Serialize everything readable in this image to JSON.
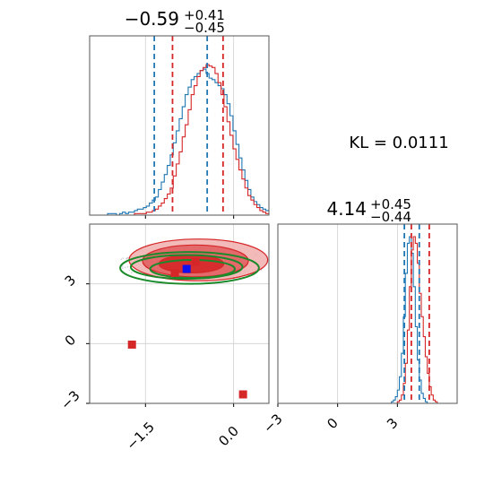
{
  "colors": {
    "blue": "#1f77b4",
    "red": "#d62728",
    "green": "#1a8a2a",
    "grid": "#d0d0d0",
    "fill_red_dark": "#d62728",
    "fill_red_light": "#f2b3b3"
  },
  "chart_data": [
    {
      "type": "histogram",
      "panel": "top-left",
      "title_main": "−0.59",
      "title_sup": "+0.41",
      "title_sub": "−0.45",
      "xlim": [
        -2.45,
        0.6
      ],
      "x_ticks": [
        -1.5,
        0.0
      ],
      "vlines_blue": [
        -1.35,
        -0.45
      ],
      "vlines_red": [
        -1.04,
        -0.18
      ],
      "series": [
        {
          "name": "",
          "color": "blue",
          "x_start": -2.45,
          "bin_width": 0.0508,
          "values": [
            0,
            0,
            0,
            0,
            0,
            0,
            1,
            1,
            1,
            0,
            1,
            2,
            1,
            2,
            2,
            3,
            4,
            4,
            5,
            6,
            8,
            10,
            12,
            17,
            22,
            27,
            33,
            40,
            48,
            56,
            64,
            72,
            80,
            85,
            90,
            92,
            94,
            96,
            97,
            94,
            91,
            90,
            88,
            86,
            84,
            80,
            74,
            66,
            56,
            47,
            38,
            30,
            23,
            17,
            12,
            9,
            7,
            5,
            4,
            3
          ]
        },
        {
          "name": "",
          "color": "red",
          "x_start": -2.45,
          "bin_width": 0.0508,
          "values": [
            0,
            0,
            0,
            0,
            0,
            0,
            0,
            0,
            0,
            0,
            0,
            0,
            0,
            0,
            0,
            1,
            1,
            1,
            1,
            2,
            2,
            3,
            4,
            6,
            8,
            11,
            14,
            18,
            26,
            34,
            42,
            52,
            60,
            70,
            80,
            86,
            92,
            96,
            98,
            100,
            99,
            98,
            94,
            88,
            80,
            72,
            62,
            53,
            44,
            37,
            30,
            24,
            18,
            13,
            10,
            7,
            5,
            3,
            2,
            1
          ]
        }
      ]
    },
    {
      "type": "scatter",
      "panel": "bottom-left",
      "xlim": [
        -2.45,
        0.6
      ],
      "ylim": [
        -3.0,
        6.0
      ],
      "x_ticks": [
        -1.5,
        0.0
      ],
      "y_ticks": [
        3,
        0,
        -3
      ],
      "x_tick_labels": [
        "−1.5",
        "0.0"
      ],
      "y_tick_labels": [
        "3",
        "0",
        "−3"
      ],
      "red_markers": [
        [
          -1.0,
          3.55
        ],
        [
          -0.65,
          4.1
        ],
        [
          -1.73,
          -0.05
        ],
        [
          0.16,
          -2.55
        ]
      ],
      "blue_markers": [
        [
          -0.8,
          3.75
        ]
      ],
      "red_contours": [
        {
          "cx": -0.6,
          "cy": 4.2,
          "rx": 1.18,
          "ry": 1.05,
          "level": "outer"
        },
        {
          "cx": -0.65,
          "cy": 4.15,
          "rx": 0.9,
          "ry": 0.8,
          "level": "mid"
        },
        {
          "cx": -0.72,
          "cy": 4.0,
          "rx": 0.55,
          "ry": 0.45,
          "level": "inner"
        }
      ],
      "green_contours": [
        {
          "cx": -0.75,
          "cy": 3.8,
          "rx": 1.18,
          "ry": 0.8
        },
        {
          "cx": -0.8,
          "cy": 3.85,
          "rx": 0.95,
          "ry": 0.6
        },
        {
          "cx": -0.7,
          "cy": 3.75,
          "rx": 0.72,
          "ry": 0.45
        }
      ]
    },
    {
      "type": "histogram",
      "panel": "bottom-right",
      "title_main": "4.14",
      "title_sup": "+0.45",
      "title_sub": "−0.44",
      "xlim": [
        -3.0,
        6.0
      ],
      "x_ticks": [
        -3,
        0,
        3
      ],
      "x_tick_labels": [
        "−3",
        "0",
        "3"
      ],
      "vlines_blue": [
        3.35,
        4.1
      ],
      "vlines_red": [
        3.7,
        4.6
      ],
      "series": [
        {
          "name": "",
          "color": "blue",
          "x_start": 2.6,
          "bin_width": 0.1,
          "values": [
            0,
            1,
            2,
            4,
            8,
            16,
            30,
            52,
            78,
            96,
            100,
            90,
            70,
            46,
            26,
            14,
            6,
            3,
            1,
            0,
            0,
            0,
            0,
            0,
            0,
            0,
            0,
            0,
            0,
            0
          ]
        },
        {
          "name": "",
          "color": "red",
          "x_start": 2.6,
          "bin_width": 0.1,
          "values": [
            0,
            0,
            0,
            0,
            1,
            2,
            5,
            12,
            24,
            44,
            70,
            92,
            100,
            96,
            84,
            66,
            52,
            40,
            28,
            18,
            10,
            5,
            2,
            1,
            0,
            0,
            0,
            0,
            0,
            0
          ]
        }
      ]
    }
  ],
  "kl": {
    "label": "KL = 0.0111"
  }
}
